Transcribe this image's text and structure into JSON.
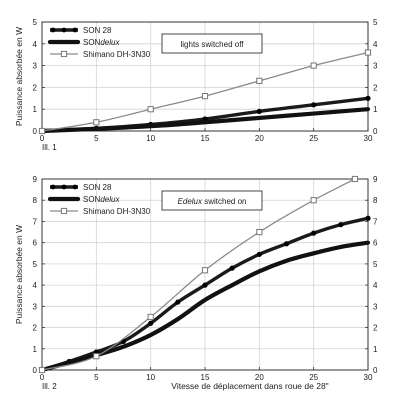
{
  "chart_data": [
    {
      "type": "line",
      "panel_label": "Ill. 1",
      "ylabel": "Puissance absorbée en W",
      "xlabel": "",
      "xlim": [
        0,
        30
      ],
      "ylim": [
        0,
        5
      ],
      "x_ticks": [
        0,
        5,
        10,
        15,
        20,
        25,
        30
      ],
      "y_ticks": [
        0,
        1,
        2,
        3,
        4,
        5
      ],
      "grid": true,
      "legend_position": "top-left",
      "annotation": "lights switched off",
      "series": [
        {
          "name": "SON 28",
          "style": "dots",
          "x": [
            0,
            5,
            10,
            15,
            20,
            25,
            30
          ],
          "y": [
            0,
            0.12,
            0.3,
            0.55,
            0.9,
            1.2,
            1.5
          ]
        },
        {
          "name": "SONdelux",
          "name_parts": [
            "SON",
            "delux"
          ],
          "style": "thick",
          "x": [
            0,
            5,
            10,
            15,
            20,
            25,
            30
          ],
          "y": [
            0,
            0.1,
            0.22,
            0.4,
            0.6,
            0.8,
            1.0
          ]
        },
        {
          "name": "Shimano DH-3N30",
          "style": "squares",
          "x": [
            0,
            5,
            10,
            15,
            20,
            25,
            30
          ],
          "y": [
            0,
            0.4,
            1.0,
            1.6,
            2.3,
            3.0,
            3.6
          ]
        }
      ]
    },
    {
      "type": "line",
      "panel_label": "Ill. 2",
      "ylabel": "Puissance absorbée en W",
      "xlabel": "Vitesse de déplacement dans roue de 28\"",
      "xlim": [
        0,
        30
      ],
      "ylim": [
        0,
        9
      ],
      "x_ticks": [
        0,
        5,
        10,
        15,
        20,
        25,
        30
      ],
      "y_ticks": [
        0,
        1,
        2,
        3,
        4,
        5,
        6,
        7,
        8,
        9
      ],
      "grid": true,
      "legend_position": "top-left",
      "annotation": "Edelux switched on",
      "annotation_parts": [
        "Edelux",
        " switched on"
      ],
      "series": [
        {
          "name": "SON 28",
          "style": "dots",
          "x": [
            0,
            2.5,
            5,
            7.5,
            10,
            12.5,
            15,
            17.5,
            20,
            22.5,
            25,
            27.5,
            30
          ],
          "y": [
            0,
            0.4,
            0.85,
            1.35,
            2.2,
            3.2,
            4.0,
            4.8,
            5.45,
            5.95,
            6.45,
            6.85,
            7.15
          ]
        },
        {
          "name": "SONdelux",
          "name_parts": [
            "SON",
            "delux"
          ],
          "style": "thick",
          "x": [
            0,
            2.5,
            5,
            7.5,
            10,
            12.5,
            15,
            17.5,
            20,
            22.5,
            25,
            27.5,
            30
          ],
          "y": [
            0,
            0.35,
            0.7,
            1.1,
            1.65,
            2.4,
            3.3,
            4.0,
            4.65,
            5.15,
            5.5,
            5.8,
            6.0
          ]
        },
        {
          "name": "Shimano DH-3N30",
          "style": "squares",
          "x": [
            0,
            5,
            10,
            15,
            20,
            25,
            28.8
          ],
          "y": [
            0,
            0.65,
            2.5,
            4.7,
            6.5,
            8.0,
            9.0
          ]
        }
      ]
    }
  ]
}
